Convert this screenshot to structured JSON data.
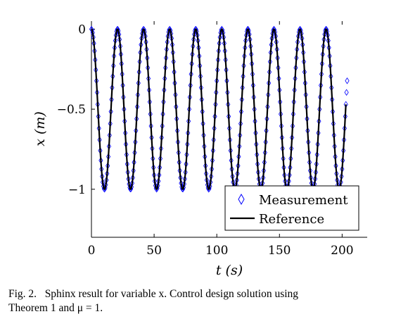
{
  "chart_data": {
    "type": "line",
    "xlabel": "t (s)",
    "ylabel": "x (m)",
    "xlim": [
      0,
      220
    ],
    "ylim": [
      -1.3,
      0.05
    ],
    "xticks": [
      0,
      50,
      100,
      150,
      200
    ],
    "xtick_labels": [
      "0",
      "50",
      "100",
      "150",
      "200"
    ],
    "yticks": [
      0,
      -0.5,
      -1
    ],
    "ytick_labels": [
      "0",
      "−0.5",
      "−1"
    ],
    "grid": false,
    "legend_position": "bottom-right",
    "series": [
      {
        "name": "Measurement",
        "style": "markers",
        "marker": "diamond",
        "color": "#0000ff",
        "t_end": 204,
        "period": 20.8,
        "amplitude": 0.5,
        "offset": -0.5
      },
      {
        "name": "Reference",
        "style": "line",
        "color": "#000000",
        "t_end": 203,
        "period": 20.8,
        "amplitude": 0.5,
        "offset": -0.5
      }
    ]
  },
  "caption": {
    "label": "Fig. 2.",
    "line1": "Sphinx result for variable x. Control design solution using",
    "line2": "Theorem 1 and μ = 1."
  }
}
